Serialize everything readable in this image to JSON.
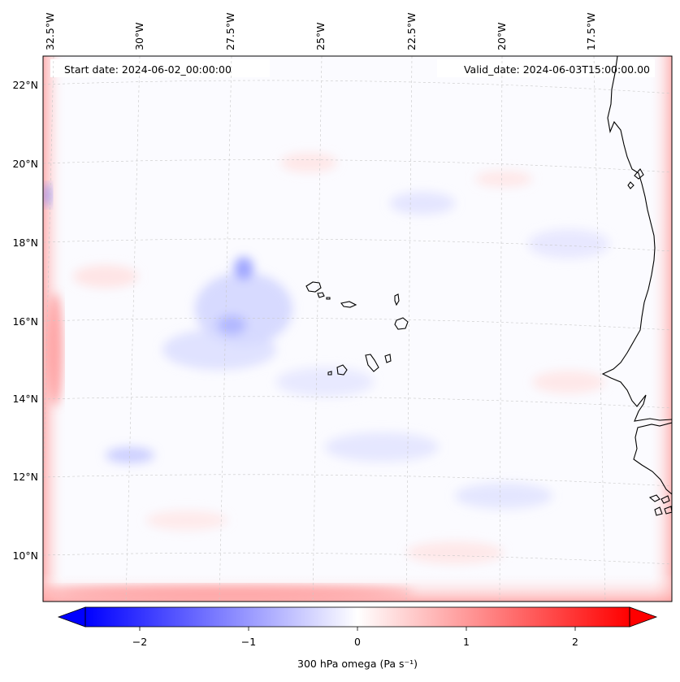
{
  "map": {
    "start_date_label": "Start date: 2024-06-02_00:00:00",
    "valid_date_label": "Valid_date: 2024-06-03T15:00:00.00",
    "lon_labels": [
      "32.5°W",
      "30°W",
      "27.5°W",
      "25°W",
      "22.5°W",
      "20°W",
      "17.5°W"
    ],
    "lat_labels": [
      "22°N",
      "20°N",
      "18°N",
      "16°N",
      "14°N",
      "12°N",
      "10°N"
    ],
    "field": "300 hPa omega",
    "colormap": "bwr",
    "features": [
      "coastline of West Africa (Senegal / Gambia / Guinea-Bissau coast)",
      "Cape Verde Islands"
    ],
    "colors": {
      "negative": "#0000ff",
      "zero": "#ffffff",
      "positive": "#ff0000",
      "coastline": "#000000",
      "gridline": "#c8c8c8"
    }
  },
  "colorbar": {
    "label": "300 hPa omega (Pa s⁻¹)",
    "ticks": [
      "−2",
      "−1",
      "0",
      "1",
      "2"
    ],
    "tick_values": [
      -2,
      -1,
      0,
      1,
      2
    ],
    "range": [
      -2.5,
      2.5
    ],
    "extend": "both"
  }
}
